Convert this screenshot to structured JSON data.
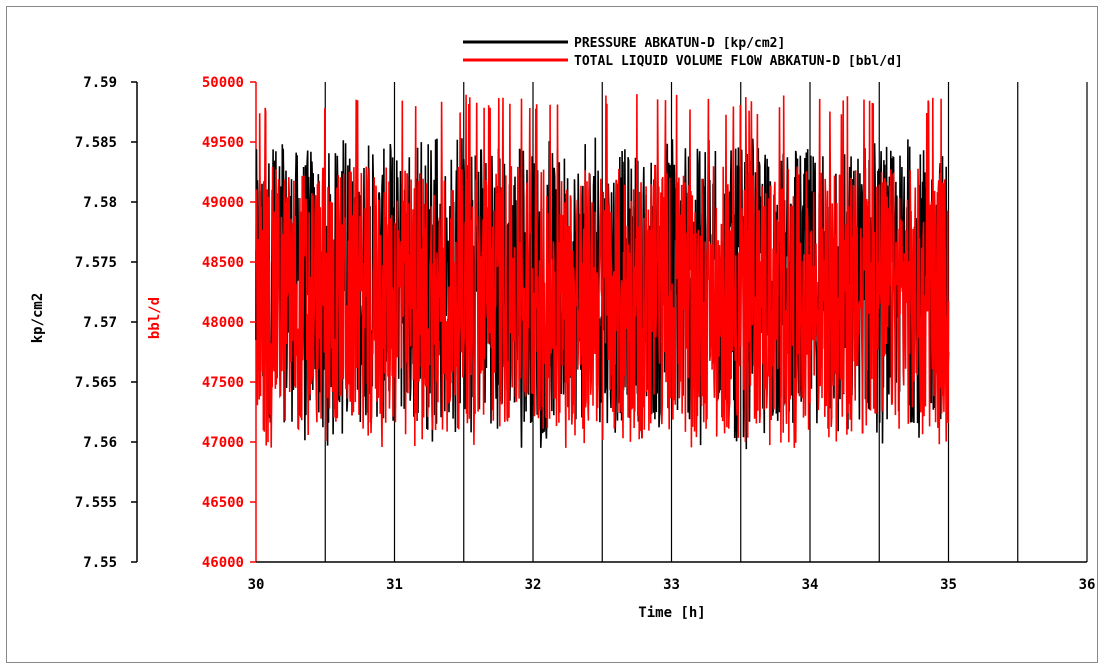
{
  "chart_data": {
    "type": "line",
    "title": "",
    "xlabel": "Time [h]",
    "x_range": [
      30,
      36
    ],
    "x_ticks": [
      "30",
      "31",
      "32",
      "33",
      "34",
      "35",
      "36"
    ],
    "x_grid": true,
    "y_grid": false,
    "legend_position": "top-right",
    "left_axes": [
      {
        "label": "kp/cm2",
        "range": [
          7.55,
          7.59
        ],
        "ticks": [
          "7.55",
          "7.555",
          "7.56",
          "7.565",
          "7.57",
          "7.575",
          "7.58",
          "7.585",
          "7.59"
        ],
        "color": "#000000"
      },
      {
        "label": "bbl/d",
        "range": [
          46000,
          50000
        ],
        "ticks": [
          "46000",
          "46500",
          "47000",
          "47500",
          "48000",
          "48500",
          "49000",
          "49500",
          "50000"
        ],
        "color": "#ff0000"
      }
    ],
    "series": [
      {
        "name": "PRESSURE ABKATUN-D [kp/cm2]",
        "color": "#000000",
        "axis": 0,
        "x_start": 30,
        "x_end": 35,
        "typical_low": 7.5615,
        "typical_high": 7.5845,
        "min": 7.5594,
        "max": 7.5854
      },
      {
        "name": "TOTAL LIQUID VOLUME FLOW ABKATUN-D [bbl/d]",
        "color": "#ff0000",
        "axis": 1,
        "x_start": 30,
        "x_end": 35,
        "typical_low": 47100,
        "typical_high": 49300,
        "min": 46950,
        "max": 49900
      }
    ]
  }
}
